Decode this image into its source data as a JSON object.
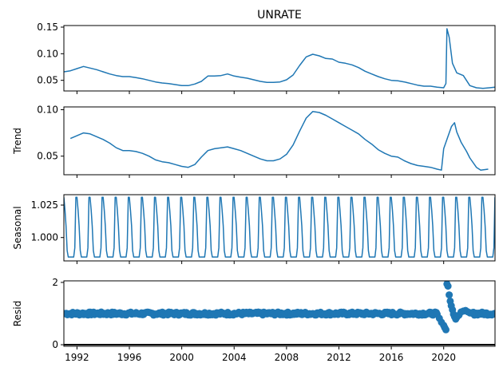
{
  "chart_data": {
    "type": "line",
    "title": "UNRATE",
    "x_ticks": [
      1992,
      1996,
      2000,
      2004,
      2008,
      2012,
      2016,
      2020
    ],
    "x_tick_labels": [
      "1992",
      "1996",
      "2000",
      "2004",
      "2008",
      "2012",
      "2016",
      "2020"
    ],
    "xlim": [
      1991.0,
      2023.92
    ],
    "line_color": "#1f77b4",
    "panels": [
      {
        "key": "observed",
        "ylabel": "",
        "ylim": [
          0.03,
          0.153
        ],
        "yticks": [
          0.05,
          0.1,
          0.15
        ],
        "ytick_labels": [
          "0.05",
          "0.10",
          "0.15"
        ],
        "kind": "line",
        "points": [
          [
            1991.0,
            0.066
          ],
          [
            1991.5,
            0.068
          ],
          [
            1992.0,
            0.072
          ],
          [
            1992.5,
            0.076
          ],
          [
            1993.0,
            0.073
          ],
          [
            1993.5,
            0.07
          ],
          [
            1994.0,
            0.066
          ],
          [
            1994.5,
            0.062
          ],
          [
            1995.0,
            0.059
          ],
          [
            1995.5,
            0.057
          ],
          [
            1996.0,
            0.057
          ],
          [
            1996.5,
            0.055
          ],
          [
            1997.0,
            0.053
          ],
          [
            1997.5,
            0.05
          ],
          [
            1998.0,
            0.047
          ],
          [
            1998.5,
            0.045
          ],
          [
            1999.0,
            0.044
          ],
          [
            1999.5,
            0.042
          ],
          [
            2000.0,
            0.04
          ],
          [
            2000.5,
            0.04
          ],
          [
            2001.0,
            0.043
          ],
          [
            2001.5,
            0.048
          ],
          [
            2002.0,
            0.058
          ],
          [
            2002.5,
            0.058
          ],
          [
            2003.0,
            0.059
          ],
          [
            2003.5,
            0.062
          ],
          [
            2004.0,
            0.058
          ],
          [
            2004.5,
            0.056
          ],
          [
            2005.0,
            0.054
          ],
          [
            2005.5,
            0.051
          ],
          [
            2006.0,
            0.048
          ],
          [
            2006.5,
            0.046
          ],
          [
            2007.0,
            0.046
          ],
          [
            2007.5,
            0.047
          ],
          [
            2008.0,
            0.051
          ],
          [
            2008.5,
            0.06
          ],
          [
            2009.0,
            0.078
          ],
          [
            2009.5,
            0.094
          ],
          [
            2010.0,
            0.099
          ],
          [
            2010.5,
            0.096
          ],
          [
            2011.0,
            0.091
          ],
          [
            2011.5,
            0.09
          ],
          [
            2012.0,
            0.084
          ],
          [
            2012.5,
            0.082
          ],
          [
            2013.0,
            0.079
          ],
          [
            2013.5,
            0.074
          ],
          [
            2014.0,
            0.067
          ],
          [
            2014.5,
            0.062
          ],
          [
            2015.0,
            0.057
          ],
          [
            2015.5,
            0.053
          ],
          [
            2016.0,
            0.05
          ],
          [
            2016.5,
            0.049
          ],
          [
            2017.0,
            0.047
          ],
          [
            2017.5,
            0.044
          ],
          [
            2018.0,
            0.041
          ],
          [
            2018.5,
            0.039
          ],
          [
            2019.0,
            0.039
          ],
          [
            2019.5,
            0.037
          ],
          [
            2020.0,
            0.036
          ],
          [
            2020.17,
            0.044
          ],
          [
            2020.25,
            0.147
          ],
          [
            2020.42,
            0.131
          ],
          [
            2020.67,
            0.082
          ],
          [
            2021.0,
            0.064
          ],
          [
            2021.5,
            0.059
          ],
          [
            2022.0,
            0.04
          ],
          [
            2022.5,
            0.036
          ],
          [
            2023.0,
            0.035
          ],
          [
            2023.5,
            0.036
          ],
          [
            2023.92,
            0.037
          ]
        ]
      },
      {
        "key": "trend",
        "ylabel": "Trend",
        "ylim": [
          0.03,
          0.103
        ],
        "yticks": [
          0.05,
          0.1
        ],
        "ytick_labels": [
          "0.05",
          "0.10"
        ],
        "kind": "line",
        "points": [
          [
            1991.5,
            0.069
          ],
          [
            1992.0,
            0.072
          ],
          [
            1992.5,
            0.075
          ],
          [
            1993.0,
            0.074
          ],
          [
            1993.5,
            0.071
          ],
          [
            1994.0,
            0.068
          ],
          [
            1994.5,
            0.064
          ],
          [
            1995.0,
            0.059
          ],
          [
            1995.5,
            0.056
          ],
          [
            1996.0,
            0.056
          ],
          [
            1996.5,
            0.055
          ],
          [
            1997.0,
            0.053
          ],
          [
            1997.5,
            0.05
          ],
          [
            1998.0,
            0.046
          ],
          [
            1998.5,
            0.044
          ],
          [
            1999.0,
            0.043
          ],
          [
            1999.5,
            0.041
          ],
          [
            2000.0,
            0.039
          ],
          [
            2000.5,
            0.038
          ],
          [
            2001.0,
            0.041
          ],
          [
            2001.5,
            0.049
          ],
          [
            2002.0,
            0.056
          ],
          [
            2002.5,
            0.058
          ],
          [
            2003.0,
            0.059
          ],
          [
            2003.5,
            0.06
          ],
          [
            2004.0,
            0.058
          ],
          [
            2004.5,
            0.056
          ],
          [
            2005.0,
            0.053
          ],
          [
            2005.5,
            0.05
          ],
          [
            2006.0,
            0.047
          ],
          [
            2006.5,
            0.045
          ],
          [
            2007.0,
            0.045
          ],
          [
            2007.5,
            0.047
          ],
          [
            2008.0,
            0.052
          ],
          [
            2008.5,
            0.062
          ],
          [
            2009.0,
            0.077
          ],
          [
            2009.5,
            0.091
          ],
          [
            2010.0,
            0.098
          ],
          [
            2010.5,
            0.097
          ],
          [
            2011.0,
            0.094
          ],
          [
            2011.5,
            0.09
          ],
          [
            2012.0,
            0.086
          ],
          [
            2012.5,
            0.082
          ],
          [
            2013.0,
            0.078
          ],
          [
            2013.5,
            0.074
          ],
          [
            2014.0,
            0.068
          ],
          [
            2014.5,
            0.063
          ],
          [
            2015.0,
            0.057
          ],
          [
            2015.5,
            0.053
          ],
          [
            2016.0,
            0.05
          ],
          [
            2016.5,
            0.049
          ],
          [
            2017.0,
            0.045
          ],
          [
            2017.5,
            0.042
          ],
          [
            2018.0,
            0.04
          ],
          [
            2018.5,
            0.039
          ],
          [
            2019.0,
            0.038
          ],
          [
            2019.5,
            0.036
          ],
          [
            2019.83,
            0.035
          ],
          [
            2020.0,
            0.058
          ],
          [
            2020.3,
            0.07
          ],
          [
            2020.6,
            0.082
          ],
          [
            2020.83,
            0.086
          ],
          [
            2021.0,
            0.076
          ],
          [
            2021.33,
            0.065
          ],
          [
            2021.75,
            0.055
          ],
          [
            2022.0,
            0.048
          ],
          [
            2022.5,
            0.038
          ],
          [
            2022.83,
            0.035
          ],
          [
            2023.4,
            0.036
          ]
        ]
      },
      {
        "key": "seasonal",
        "ylabel": "Seasonal",
        "ylim": [
          0.982,
          1.033
        ],
        "yticks": [
          1.0,
          1.025
        ],
        "ytick_labels": [
          "1.000",
          "1.025"
        ],
        "kind": "periodic",
        "period_start": 1991.0,
        "period_years": 1.0,
        "pattern": [
          1.031,
          1.021,
          1.009,
          0.99,
          0.985,
          0.985,
          0.985,
          0.985,
          0.985,
          0.985,
          0.992,
          1.031
        ]
      },
      {
        "key": "resid",
        "ylabel": "Resid",
        "ylim": [
          -0.05,
          2.05
        ],
        "yticks": [
          0,
          2
        ],
        "ytick_labels": [
          "0",
          "2"
        ],
        "kind": "scatter",
        "baseline": 0,
        "default_value": 1.0,
        "points": [
          [
            2019.5,
            0.98
          ],
          [
            2019.67,
            0.85
          ],
          [
            2019.83,
            0.72
          ],
          [
            2020.0,
            0.62
          ],
          [
            2020.08,
            0.55
          ],
          [
            2020.17,
            0.48
          ],
          [
            2020.25,
            1.95
          ],
          [
            2020.33,
            1.88
          ],
          [
            2020.42,
            1.6
          ],
          [
            2020.5,
            1.4
          ],
          [
            2020.58,
            1.25
          ],
          [
            2020.67,
            1.12
          ],
          [
            2020.75,
            0.98
          ],
          [
            2020.83,
            0.9
          ],
          [
            2020.92,
            0.82
          ],
          [
            2021.0,
            0.88
          ],
          [
            2021.17,
            0.95
          ],
          [
            2021.33,
            1.05
          ],
          [
            2021.5,
            1.08
          ],
          [
            2021.67,
            1.1
          ],
          [
            2021.83,
            1.06
          ],
          [
            2022.0,
            1.02
          ]
        ]
      }
    ]
  }
}
